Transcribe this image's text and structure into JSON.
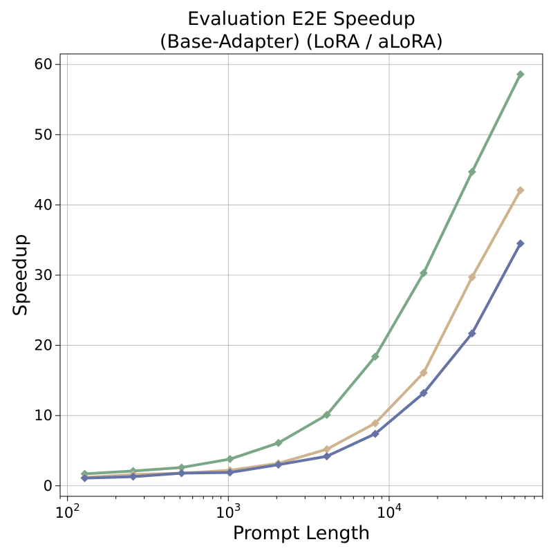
{
  "chart_data": {
    "type": "line",
    "title_lines": [
      "Evaluation E2E Speedup",
      "(Base-Adapter) (LoRA / aLoRA)"
    ],
    "xlabel": "Prompt Length",
    "ylabel": "Speedup",
    "xscale": "log",
    "xlim": [
      90,
      90000
    ],
    "ylim": [
      -1.5,
      61.5
    ],
    "x_ticks": [
      {
        "base": "10",
        "exp": "2",
        "value": 100
      },
      {
        "base": "10",
        "exp": "3",
        "value": 1000
      },
      {
        "base": "10",
        "exp": "4",
        "value": 10000
      }
    ],
    "y_ticks": [
      {
        "label": "0",
        "value": 0
      },
      {
        "label": "10",
        "value": 10
      },
      {
        "label": "20",
        "value": 20
      },
      {
        "label": "30",
        "value": 30
      },
      {
        "label": "40",
        "value": 40
      },
      {
        "label": "50",
        "value": 50
      },
      {
        "label": "60",
        "value": 60
      }
    ],
    "grid": true,
    "x": [
      128,
      256,
      512,
      1024,
      2048,
      4096,
      8192,
      16384,
      32768,
      65536
    ],
    "series": [
      {
        "color": "#7aa786",
        "marker": "diamond",
        "values": [
          1.7,
          2.1,
          2.6,
          3.8,
          6.1,
          10.1,
          18.4,
          30.3,
          44.7,
          58.6
        ]
      },
      {
        "color": "#cdb48e",
        "marker": "diamond",
        "values": [
          1.2,
          1.6,
          1.8,
          2.2,
          3.2,
          5.2,
          8.9,
          16.1,
          29.7,
          42.1
        ]
      },
      {
        "color": "#6573a7",
        "marker": "diamond",
        "values": [
          1.1,
          1.3,
          1.8,
          1.9,
          3.0,
          4.2,
          7.4,
          13.2,
          21.7,
          34.5
        ]
      }
    ]
  }
}
